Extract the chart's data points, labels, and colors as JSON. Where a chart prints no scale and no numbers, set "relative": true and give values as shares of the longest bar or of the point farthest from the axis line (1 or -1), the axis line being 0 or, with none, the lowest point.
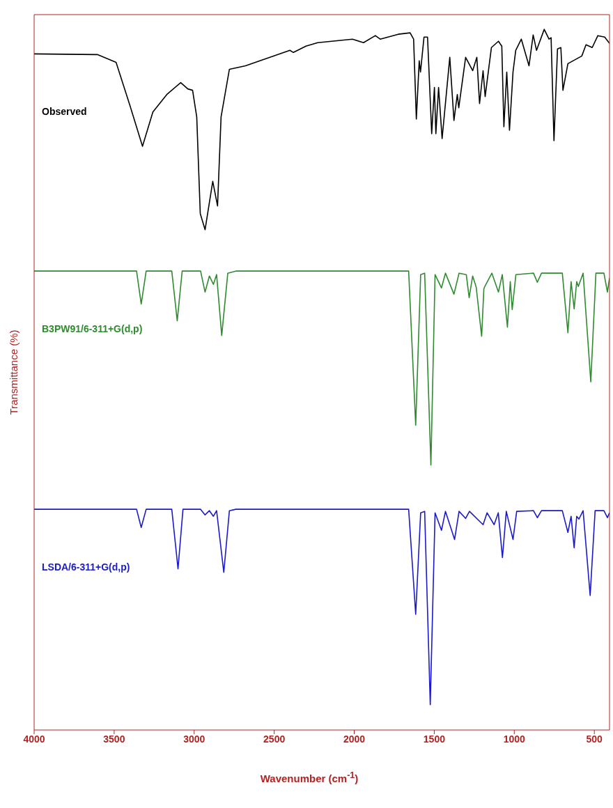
{
  "chart_data": {
    "type": "line",
    "xlabel": "Wavenumber (cm$^{-1}$)",
    "ylabel": "Transmittance (%)",
    "relative": true,
    "xlim": [
      4000,
      405
    ],
    "xticks": [
      4000,
      3500,
      3000,
      2500,
      2000,
      1500,
      1000,
      500
    ],
    "grid": false,
    "legend": false,
    "marker": "none",
    "line_style": "solid",
    "series": [
      {
        "name": "Observed",
        "color": "#000000",
        "x": [
          4000,
          3605,
          3488,
          3401,
          3323,
          3258,
          3171,
          3084,
          3040,
          3010,
          2984,
          2962,
          2932,
          2884,
          2854,
          2832,
          2780,
          2680,
          2402,
          2380,
          2302,
          2228,
          2011,
          1942,
          1868,
          1838,
          1725,
          1651,
          1629,
          1612,
          1594,
          1586,
          1564,
          1542,
          1516,
          1499,
          1490,
          1473,
          1451,
          1403,
          1377,
          1356,
          1347,
          1304,
          1260,
          1234,
          1217,
          1195,
          1182,
          1143,
          1099,
          1078,
          1065,
          1047,
          1030,
          1008,
          991,
          956,
          908,
          882,
          861,
          813,
          783,
          770,
          752,
          730,
          709,
          696,
          665,
          578,
          552,
          513,
          478,
          435,
          405
        ],
        "values": [
          0.965,
          0.964,
          0.953,
          0.891,
          0.833,
          0.882,
          0.907,
          0.924,
          0.915,
          0.913,
          0.875,
          0.737,
          0.714,
          0.783,
          0.748,
          0.875,
          0.943,
          0.948,
          0.97,
          0.967,
          0.976,
          0.981,
          0.986,
          0.981,
          0.991,
          0.986,
          0.993,
          0.995,
          0.986,
          0.872,
          0.955,
          0.939,
          0.989,
          0.989,
          0.851,
          0.917,
          0.851,
          0.917,
          0.844,
          0.96,
          0.87,
          0.907,
          0.888,
          0.96,
          0.941,
          0.96,
          0.894,
          0.941,
          0.904,
          0.974,
          0.983,
          0.976,
          0.861,
          0.939,
          0.856,
          0.939,
          0.97,
          0.986,
          0.948,
          0.992,
          0.97,
          1.0,
          0.986,
          0.988,
          0.841,
          0.972,
          0.974,
          0.913,
          0.951,
          0.962,
          0.978,
          0.974,
          0.991,
          0.989,
          0.98
        ]
      },
      {
        "name": "B3PW91/6-311+G(d,p)",
        "color": "#2e8b2e",
        "x": [
          4000,
          3360,
          3331,
          3300,
          3140,
          3106,
          3075,
          2960,
          2932,
          2905,
          2880,
          2860,
          2828,
          2790,
          2740,
          1660,
          1616,
          1585,
          1560,
          1521,
          1495,
          1455,
          1430,
          1377,
          1345,
          1300,
          1282,
          1260,
          1238,
          1204,
          1190,
          1182,
          1140,
          1099,
          1075,
          1043,
          1025,
          1013,
          990,
          880,
          856,
          830,
          700,
          665,
          645,
          626,
          610,
          600,
          570,
          522,
          490,
          440,
          418,
          405
        ],
        "values": [
          0.655,
          0.655,
          0.608,
          0.655,
          0.655,
          0.584,
          0.655,
          0.655,
          0.625,
          0.648,
          0.636,
          0.65,
          0.563,
          0.652,
          0.655,
          0.655,
          0.435,
          0.65,
          0.652,
          0.378,
          0.65,
          0.631,
          0.652,
          0.622,
          0.652,
          0.65,
          0.617,
          0.648,
          0.632,
          0.562,
          0.63,
          0.634,
          0.652,
          0.625,
          0.65,
          0.575,
          0.64,
          0.6,
          0.65,
          0.652,
          0.639,
          0.652,
          0.652,
          0.567,
          0.64,
          0.601,
          0.64,
          0.633,
          0.652,
          0.497,
          0.652,
          0.652,
          0.625,
          0.645
        ]
      },
      {
        "name": "LSDA/6-311+G(d,p)",
        "color": "#1a1acc",
        "x": [
          4000,
          3360,
          3331,
          3300,
          3140,
          3101,
          3070,
          2960,
          2932,
          2905,
          2880,
          2860,
          2815,
          2780,
          2740,
          1660,
          1616,
          1585,
          1560,
          1525,
          1495,
          1455,
          1430,
          1373,
          1345,
          1304,
          1280,
          1195,
          1170,
          1126,
          1100,
          1074,
          1050,
          1008,
          985,
          880,
          856,
          830,
          700,
          665,
          645,
          626,
          610,
          596,
          570,
          526,
          495,
          440,
          418,
          405
        ],
        "values": [
          0.315,
          0.315,
          0.289,
          0.315,
          0.315,
          0.23,
          0.315,
          0.315,
          0.307,
          0.313,
          0.305,
          0.313,
          0.225,
          0.313,
          0.315,
          0.315,
          0.165,
          0.31,
          0.312,
          0.036,
          0.31,
          0.285,
          0.312,
          0.272,
          0.312,
          0.302,
          0.312,
          0.293,
          0.31,
          0.293,
          0.31,
          0.246,
          0.312,
          0.272,
          0.312,
          0.313,
          0.303,
          0.313,
          0.313,
          0.282,
          0.305,
          0.26,
          0.305,
          0.301,
          0.313,
          0.192,
          0.313,
          0.313,
          0.303,
          0.31
        ]
      }
    ]
  }
}
